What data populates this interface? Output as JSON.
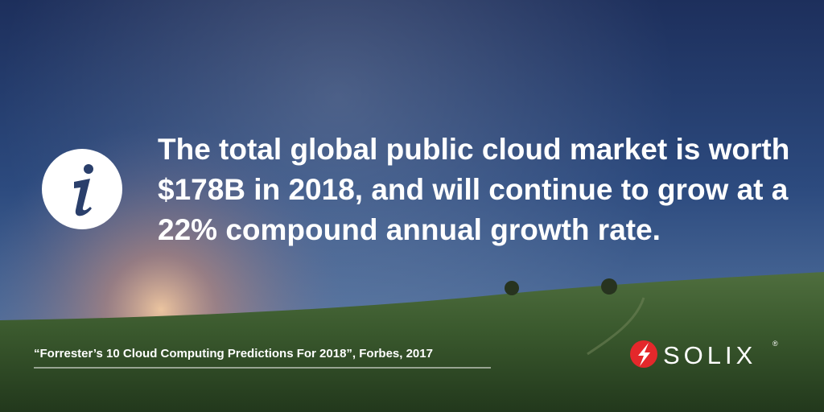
{
  "headline": {
    "lines": [
      "The total global public cloud market is worth",
      "$178B in 2018, and will continue to grow at a",
      "22% compound annual growth rate."
    ]
  },
  "citation": "“Forrester’s 10 Cloud Computing Predictions For 2018”, Forbes, 2017",
  "logo": {
    "name": "SOLIX",
    "mark": "®"
  }
}
